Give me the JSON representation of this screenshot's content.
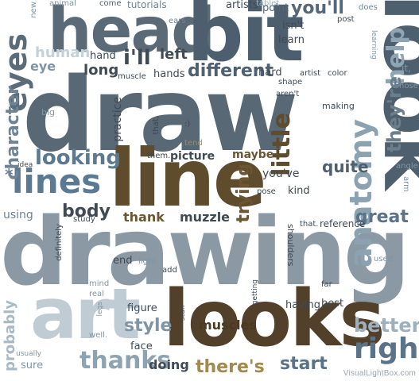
{
  "palette": {
    "dark": "#4f6170",
    "steel": "#6b7f8e",
    "light": "#9fb2bf",
    "pale": "#c5d1d9",
    "brown": "#6b5631",
    "gold": "#a3894c"
  },
  "words": {
    "head": "head",
    "bit": "bit",
    "look": "look",
    "draw": "draw",
    "line": "line",
    "drawing": "drawing",
    "art": "art",
    "looks": "looks",
    "anatomy": "anatomy",
    "lines": "lines",
    "eyes": "eyes",
    "character": "character",
    "help": "help",
    "you_ll": "you'll",
    "artists": "artists",
    "point": "point",
    "tablet": "tablet",
    "does": "does",
    "come": "come",
    "tutorials": "tutorials",
    "animal": "animal",
    "new": "new",
    "ears": "ears",
    "isn_t": "isn't",
    "post": "post",
    "learn": "learn",
    "learning": "learning",
    "human": "human",
    "eye": "eye",
    "hand": "hand",
    "i_ll": "i'll",
    "left": "left",
    "long": "long",
    "muscle": "muscle",
    "hands": "hands",
    "different": "different",
    "hard": "hard",
    "artist": "artist",
    "color": "color",
    "it": "it,",
    "nose": "nose",
    "shape": "shape",
    "aren_t": "aren't",
    "making": "making",
    "big": "big",
    "practice": "practice",
    "that1": "that,",
    "smile": ":)",
    "tend": "tend",
    "they_re": "they're",
    "little": "little",
    "them": "them.",
    "picture": "picture",
    "maybe": "maybe",
    "looking": "looking",
    "idea": "idea",
    "trying": "trying",
    "you_ve": "you've",
    "quite": "quite",
    "angle": "angle",
    "arm": "arm",
    "pose": "pose",
    "kind": "kind",
    "body": "body",
    "thank": "thank",
    "muzzle": "muzzle",
    "using": "using",
    "great": "great",
    "study": "study",
    "definitely": "definitely",
    "shoulders": "shoulders",
    "that2": "that.",
    "reference": "reference",
    "end": "end",
    "light": "light",
    "add": "add",
    "used": "used",
    "mind": "mind",
    "real": "real",
    "getting": "getting",
    "far": "far",
    "legs": "legs",
    "well": "well.",
    "figure": "figure",
    "stuff": "stuff",
    "muscles": "muscles",
    "having": "having",
    "best": "best",
    "probably": "probably",
    "usually": "usually",
    "style": "style",
    "better": "better",
    "face": "face",
    "sure": "sure",
    "thanks": "thanks",
    "doing": "doing",
    "there_s": "there's",
    "start": "start",
    "right": "right",
    "star": "*"
  },
  "watermark": "VisualLightBox.com"
}
